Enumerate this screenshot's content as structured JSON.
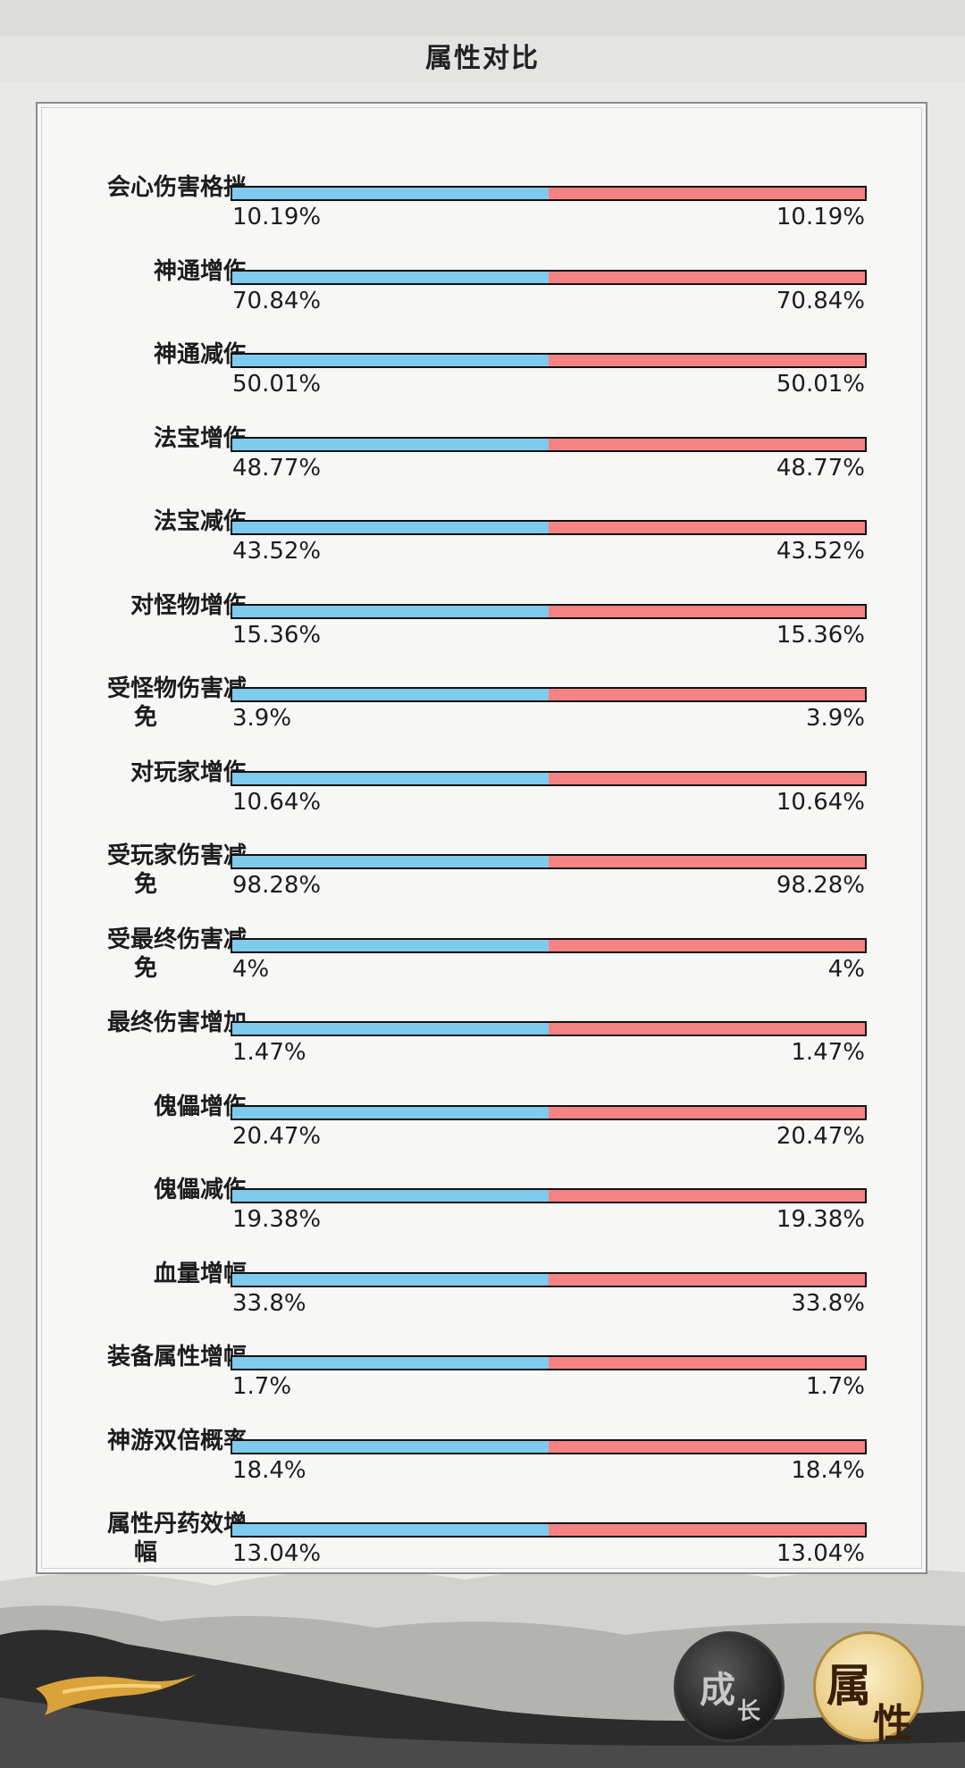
{
  "header": {
    "title": "属性对比"
  },
  "colors": {
    "self_bar": "#7fcbee",
    "other_bar": "#f58383",
    "bar_border": "#111111"
  },
  "rows": [
    {
      "label": "会心伤害格挡",
      "left": "10.19%",
      "right": "10.19%",
      "split": 0.5
    },
    {
      "label": "神通增伤",
      "left": "70.84%",
      "right": "70.84%",
      "split": 0.5
    },
    {
      "label": "神通减伤",
      "left": "50.01%",
      "right": "50.01%",
      "split": 0.5
    },
    {
      "label": "法宝增伤",
      "left": "48.77%",
      "right": "48.77%",
      "split": 0.5
    },
    {
      "label": "法宝减伤",
      "left": "43.52%",
      "right": "43.52%",
      "split": 0.5
    },
    {
      "label": "对怪物增伤",
      "left": "15.36%",
      "right": "15.36%",
      "split": 0.5
    },
    {
      "label": "受怪物伤害减免",
      "left": "3.9%",
      "right": "3.9%",
      "split": 0.5
    },
    {
      "label": "对玩家增伤",
      "left": "10.64%",
      "right": "10.64%",
      "split": 0.5
    },
    {
      "label": "受玩家伤害减免",
      "left": "98.28%",
      "right": "98.28%",
      "split": 0.5
    },
    {
      "label": "受最终伤害减免",
      "left": "4%",
      "right": "4%",
      "split": 0.5
    },
    {
      "label": "最终伤害增加",
      "left": "1.47%",
      "right": "1.47%",
      "split": 0.5
    },
    {
      "label": "傀儡增伤",
      "left": "20.47%",
      "right": "20.47%",
      "split": 0.5
    },
    {
      "label": "傀儡减伤",
      "left": "19.38%",
      "right": "19.38%",
      "split": 0.5
    },
    {
      "label": "血量增幅",
      "left": "33.8%",
      "right": "33.8%",
      "split": 0.5
    },
    {
      "label": "装备属性增幅",
      "left": "1.7%",
      "right": "1.7%",
      "split": 0.5
    },
    {
      "label": "神游双倍概率",
      "left": "18.4%",
      "right": "18.4%",
      "split": 0.5
    },
    {
      "label": "属性丹药效增幅",
      "left": "13.04%",
      "right": "13.04%",
      "split": 0.5
    }
  ],
  "tabs": {
    "growth": {
      "char1": "成",
      "char2": "长"
    },
    "attribute": {
      "char1": "属",
      "char2": "性"
    }
  }
}
